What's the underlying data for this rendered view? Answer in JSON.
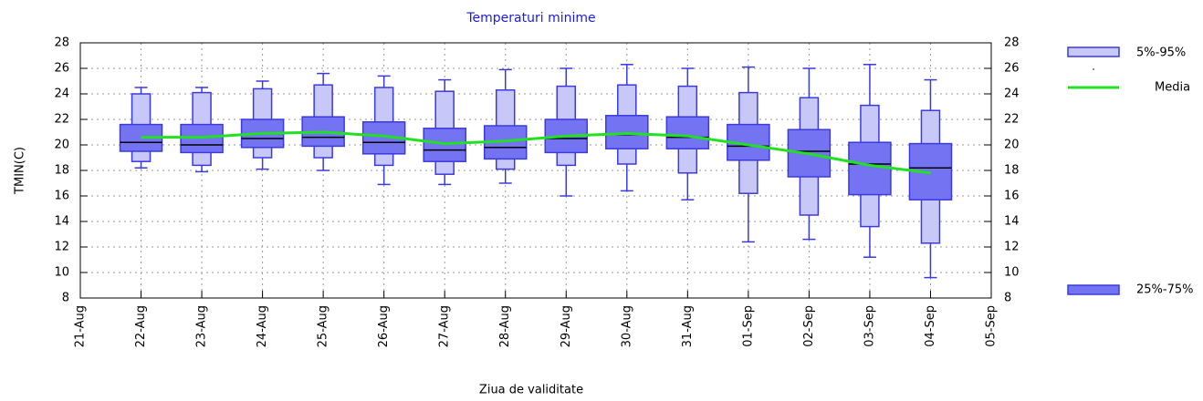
{
  "chart_data": {
    "type": "box",
    "title": "Temperaturi minime",
    "xlabel": "Ziua de validitate",
    "ylabel": "TMIN(C)",
    "categories": [
      "21-Aug",
      "22-Aug",
      "23-Aug",
      "24-Aug",
      "25-Aug",
      "26-Aug",
      "27-Aug",
      "28-Aug",
      "29-Aug",
      "30-Aug",
      "31-Aug",
      "01-Sep",
      "02-Sep",
      "03-Sep",
      "04-Sep",
      "05-Sep"
    ],
    "ylim": [
      8,
      28
    ],
    "yticks": [
      8,
      10,
      12,
      14,
      16,
      18,
      20,
      22,
      24,
      26,
      28
    ],
    "y2lim": [
      8,
      28
    ],
    "y2ticks": [
      8,
      10,
      12,
      14,
      16,
      18,
      20,
      22,
      24,
      26,
      28
    ],
    "grid": true,
    "min": [
      null,
      18.2,
      17.9,
      18.1,
      18.0,
      16.9,
      16.9,
      17.0,
      16.0,
      16.4,
      15.7,
      12.4,
      12.6,
      11.2,
      9.6,
      null
    ],
    "max": [
      null,
      24.5,
      24.5,
      25.0,
      25.6,
      25.4,
      25.1,
      25.9,
      26.0,
      26.3,
      26.0,
      26.1,
      26.0,
      26.3,
      25.1,
      null
    ],
    "median": [
      null,
      20.2,
      20.0,
      20.5,
      20.6,
      20.2,
      19.6,
      19.8,
      20.5,
      20.8,
      20.6,
      19.9,
      19.5,
      18.5,
      18.2,
      null
    ],
    "series": [
      {
        "name": "5%-95%",
        "color": "#c8c8f8",
        "low": [
          null,
          18.7,
          18.4,
          19.0,
          19.0,
          18.4,
          17.7,
          18.1,
          18.4,
          18.5,
          17.8,
          16.2,
          14.5,
          13.6,
          12.3,
          null
        ],
        "high": [
          null,
          24.0,
          24.1,
          24.4,
          24.7,
          24.5,
          24.2,
          24.3,
          24.6,
          24.7,
          24.6,
          24.1,
          23.7,
          23.1,
          22.7,
          null
        ]
      },
      {
        "name": "25%-75%",
        "color": "#7474f2",
        "low": [
          null,
          19.5,
          19.4,
          19.8,
          19.9,
          19.3,
          18.7,
          18.9,
          19.4,
          19.7,
          19.7,
          18.8,
          17.5,
          16.1,
          15.7,
          null
        ],
        "high": [
          null,
          21.6,
          21.6,
          22.0,
          22.2,
          21.8,
          21.3,
          21.5,
          22.0,
          22.3,
          22.2,
          21.6,
          21.2,
          20.2,
          20.1,
          null
        ]
      },
      {
        "name": "Media",
        "color": "#22e022",
        "values": [
          null,
          20.6,
          20.6,
          20.9,
          21.0,
          20.7,
          20.1,
          20.3,
          20.7,
          20.9,
          20.7,
          20.0,
          19.3,
          18.4,
          17.8,
          null
        ]
      }
    ]
  }
}
